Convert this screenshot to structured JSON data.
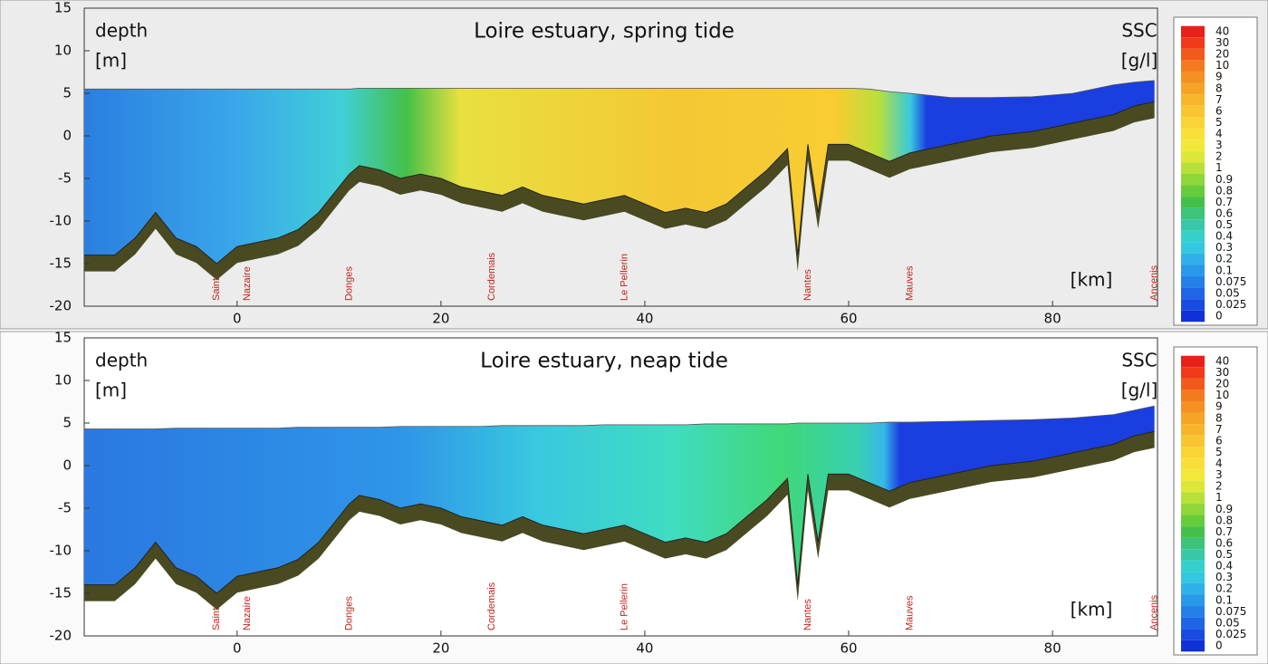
{
  "chart_data": [
    {
      "type": "area",
      "title": "Loire estuary, spring tide",
      "ylabel": [
        "depth",
        "[m]"
      ],
      "xlabel": "[km]",
      "xlim": [
        -15,
        90.3
      ],
      "ylim": [
        -20,
        15
      ],
      "xticks": [
        0,
        20,
        40,
        60,
        80
      ],
      "yticks": [
        15,
        10,
        5,
        0,
        -5,
        -10,
        -15,
        -20
      ],
      "x": [
        -15,
        -12,
        -10,
        -8,
        -6,
        -4,
        -2,
        0,
        2,
        4,
        6,
        8,
        10,
        11,
        12,
        14,
        16,
        18,
        20,
        22,
        24,
        26,
        28,
        30,
        32,
        34,
        36,
        38,
        40,
        42,
        44,
        46,
        48,
        50,
        52,
        54,
        55,
        56,
        57,
        58,
        60,
        62,
        64,
        66,
        70,
        74,
        78,
        82,
        86,
        88,
        90
      ],
      "bed": [
        -14,
        -14,
        -12,
        -9,
        -12,
        -13,
        -15,
        -13,
        -12.5,
        -12,
        -11,
        -9,
        -6,
        -4.5,
        -3.5,
        -4,
        -5,
        -4.5,
        -5,
        -6,
        -6.5,
        -7,
        -6,
        -7,
        -7.5,
        -8,
        -7.5,
        -7,
        -8,
        -9,
        -8.5,
        -9,
        -8,
        -6,
        -4,
        -1.5,
        -14,
        -1,
        -9,
        -1,
        -1,
        -2,
        -3,
        -2,
        -1,
        0,
        0.5,
        1.5,
        2.5,
        3.5,
        4
      ],
      "surface": [
        5.5,
        5.5,
        5.5,
        5.5,
        5.5,
        5.5,
        5.5,
        5.5,
        5.5,
        5.5,
        5.5,
        5.5,
        5.5,
        5.5,
        5.6,
        5.6,
        5.6,
        5.6,
        5.6,
        5.6,
        5.6,
        5.6,
        5.6,
        5.6,
        5.6,
        5.6,
        5.6,
        5.6,
        5.6,
        5.6,
        5.6,
        5.6,
        5.6,
        5.6,
        5.6,
        5.6,
        5.6,
        5.6,
        5.6,
        5.6,
        5.6,
        5.5,
        5.2,
        5,
        4.5,
        4.5,
        4.6,
        5,
        6,
        6.3,
        6.5
      ],
      "locations": [
        {
          "label": "Saint-",
          "x": -2
        },
        {
          "label": "Nazaire",
          "x": 1
        },
        {
          "label": "Donges",
          "x": 11
        },
        {
          "label": "Cordemais",
          "x": 25
        },
        {
          "label": "Le Pellerin",
          "x": 38
        },
        {
          "label": "Nantes",
          "x": 56
        },
        {
          "label": "Mauves",
          "x": 66
        },
        {
          "label": "Ancenis",
          "x": 90
        }
      ]
    },
    {
      "type": "area",
      "title": "Loire estuary, neap tide",
      "ylabel": [
        "depth",
        "[m]"
      ],
      "xlabel": "[km]",
      "xlim": [
        -15,
        90.3
      ],
      "ylim": [
        -20,
        15
      ],
      "xticks": [
        0,
        20,
        40,
        60,
        80
      ],
      "yticks": [
        15,
        10,
        5,
        0,
        -5,
        -10,
        -15,
        -20
      ],
      "x": [
        -15,
        -12,
        -10,
        -8,
        -6,
        -4,
        -2,
        0,
        2,
        4,
        6,
        8,
        10,
        11,
        12,
        14,
        16,
        18,
        20,
        22,
        24,
        26,
        28,
        30,
        32,
        34,
        36,
        38,
        40,
        42,
        44,
        46,
        48,
        50,
        52,
        54,
        55,
        56,
        57,
        58,
        60,
        62,
        64,
        66,
        70,
        74,
        78,
        82,
        86,
        88,
        90
      ],
      "bed": [
        -14,
        -14,
        -12,
        -9,
        -12,
        -13,
        -15,
        -13,
        -12.5,
        -12,
        -11,
        -9,
        -6,
        -4.5,
        -3.5,
        -4,
        -5,
        -4.5,
        -5,
        -6,
        -6.5,
        -7,
        -6,
        -7,
        -7.5,
        -8,
        -7.5,
        -7,
        -8,
        -9,
        -8.5,
        -9,
        -8,
        -6,
        -4,
        -1.5,
        -14,
        -1,
        -9,
        -1,
        -1,
        -2,
        -3,
        -2,
        -1,
        0,
        0.5,
        1.5,
        2.5,
        3.5,
        4
      ],
      "surface": [
        4.3,
        4.3,
        4.3,
        4.3,
        4.4,
        4.4,
        4.4,
        4.4,
        4.4,
        4.4,
        4.5,
        4.5,
        4.5,
        4.5,
        4.5,
        4.5,
        4.6,
        4.6,
        4.6,
        4.6,
        4.6,
        4.7,
        4.7,
        4.7,
        4.7,
        4.7,
        4.8,
        4.8,
        4.8,
        4.8,
        4.8,
        4.9,
        4.9,
        4.9,
        4.9,
        4.9,
        5,
        5,
        5,
        5,
        5,
        5,
        5.1,
        5.1,
        5.2,
        5.3,
        5.4,
        5.6,
        6,
        6.5,
        7
      ],
      "locations": [
        {
          "label": "Saint-",
          "x": -2
        },
        {
          "label": "Nazaire",
          "x": 1
        },
        {
          "label": "Donges",
          "x": 11
        },
        {
          "label": "Cordemais",
          "x": 25
        },
        {
          "label": "Le Pellerin",
          "x": 38
        },
        {
          "label": "Nantes",
          "x": 56
        },
        {
          "label": "Mauves",
          "x": 66
        },
        {
          "label": "Ancenis",
          "x": 90
        }
      ]
    }
  ],
  "colorbar": {
    "title": [
      "SSC",
      "[g/l]"
    ],
    "ticks": [
      40,
      30,
      20,
      10,
      9,
      8,
      7,
      6,
      5,
      4,
      3,
      2,
      1,
      0.9,
      0.8,
      0.7,
      0.6,
      0.5,
      0.4,
      0.3,
      0.2,
      0.1,
      0.075,
      0.05,
      0.025,
      0
    ],
    "colors": [
      "#e8201a",
      "#f03a1a",
      "#f25a1c",
      "#f47a20",
      "#f59024",
      "#f6a428",
      "#f7b52c",
      "#f8c430",
      "#f9d434",
      "#f8e038",
      "#f2e83a",
      "#dbe83a",
      "#b8e03a",
      "#8fd63a",
      "#66cc3c",
      "#44c048",
      "#3cc47a",
      "#38c8a8",
      "#36d0cc",
      "#34c8e0",
      "#30b0e8",
      "#2a98e8",
      "#2480e8",
      "#1e66e6",
      "#184ce0",
      "#1030d8"
    ]
  }
}
